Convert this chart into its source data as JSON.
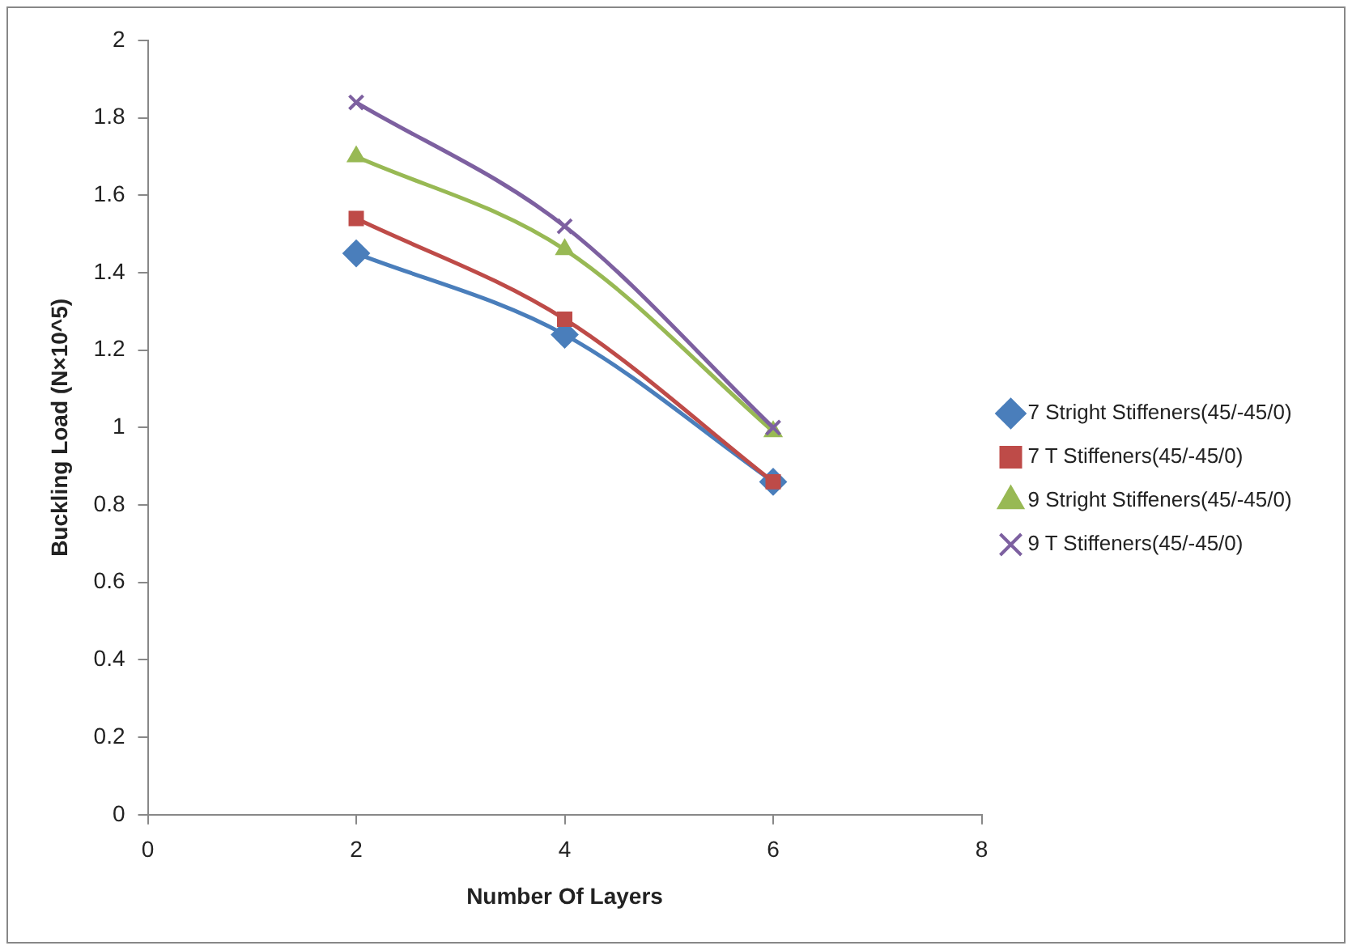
{
  "chart_data": {
    "type": "line",
    "xlabel": "Number Of Layers",
    "ylabel": "Buckling Load (N×10^5)",
    "x": [
      2,
      4,
      6
    ],
    "xlim": [
      0,
      8
    ],
    "xticks": [
      0,
      2,
      4,
      6,
      8
    ],
    "ylim": [
      0,
      2
    ],
    "yticks": [
      0,
      0.2,
      0.4,
      0.6,
      0.8,
      1,
      1.2,
      1.4,
      1.6,
      1.8,
      2
    ],
    "grid": false,
    "legend": "right",
    "series": [
      {
        "name": "7 Stright Stiffeners(45/-45/0)",
        "color": "#4a7ebb",
        "marker": "diamond",
        "values": [
          1.45,
          1.24,
          0.86
        ]
      },
      {
        "name": "7 T Stiffeners(45/-45/0)",
        "color": "#be4b48",
        "marker": "square",
        "values": [
          1.54,
          1.28,
          0.86
        ]
      },
      {
        "name": "9 Stright Stiffeners(45/-45/0)",
        "color": "#98b954",
        "marker": "triangle",
        "values": [
          1.7,
          1.46,
          0.99
        ]
      },
      {
        "name": "9 T Stiffeners(45/-45/0)",
        "color": "#7d60a0",
        "marker": "cross",
        "values": [
          1.84,
          1.52,
          1.0
        ]
      }
    ]
  }
}
